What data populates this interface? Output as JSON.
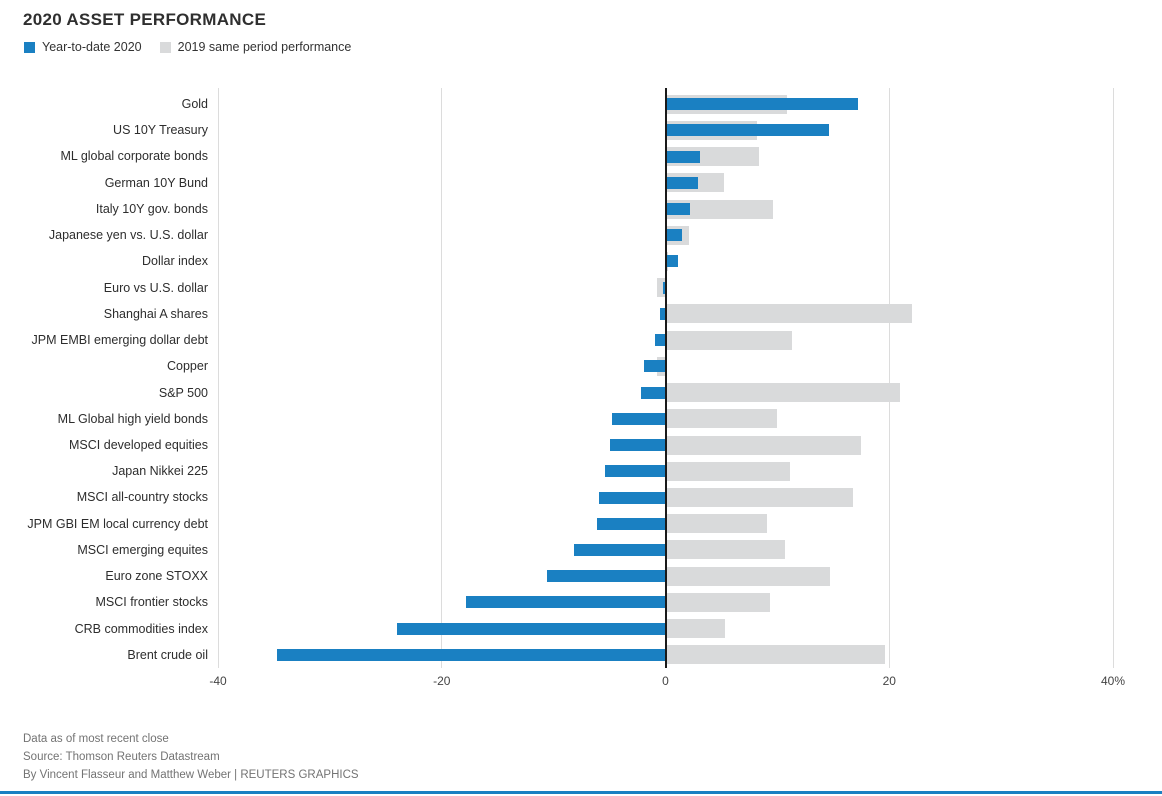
{
  "header": {
    "title": "2020 ASSET PERFORMANCE"
  },
  "legend": [
    {
      "label": "Year-to-date 2020",
      "color": "#1a80c2"
    },
    {
      "label": "2019 same period performance",
      "color": "#d9dadb"
    }
  ],
  "chart_data": {
    "type": "bar",
    "orientation": "horizontal",
    "title": "2020 ASSET PERFORMANCE",
    "categories": [
      "Gold",
      "US 10Y Treasury",
      "ML global corporate bonds",
      "German 10Y Bund",
      "Italy 10Y gov. bonds",
      "Japanese yen vs. U.S. dollar",
      "Dollar index",
      "Euro vs U.S. dollar",
      "Shanghai A shares",
      "JPM EMBI emerging dollar debt",
      "Copper",
      "S&P 500",
      "ML Global high yield bonds",
      "MSCI developed equities",
      "Japan Nikkei 225",
      "MSCI all-country stocks",
      "JPM GBI EM local currency debt",
      "MSCI emerging equites",
      "Euro zone STOXX",
      "MSCI frontier stocks",
      "CRB commodities index",
      "Brent crude oil"
    ],
    "series": [
      {
        "name": "Year-to-date 2020",
        "color": "#1a80c2",
        "values": [
          17.2,
          14.6,
          3.1,
          2.9,
          2.2,
          1.5,
          1.1,
          -0.2,
          -0.5,
          -0.9,
          -1.9,
          -2.2,
          -4.8,
          -5.0,
          -5.4,
          -5.9,
          -6.1,
          -8.2,
          -10.6,
          -17.8,
          -24.0,
          -34.7
        ]
      },
      {
        "name": "2019 same period performance",
        "color": "#d9dadb",
        "values": [
          10.9,
          8.2,
          8.4,
          5.2,
          9.6,
          2.1,
          0.2,
          -0.8,
          22.0,
          11.3,
          -0.8,
          21.0,
          10.0,
          17.5,
          11.1,
          16.8,
          9.1,
          10.7,
          14.7,
          9.3,
          5.3,
          19.6
        ]
      }
    ],
    "xlabel": "",
    "ylabel": "",
    "xlim": [
      -40,
      40
    ],
    "xticks": [
      -40,
      -20,
      0,
      20,
      40
    ],
    "xtick_labels": [
      "-40",
      "-20",
      "0",
      "20",
      "40%"
    ],
    "grid": "vertical",
    "zero_line": true,
    "legend_position": "top-left",
    "unit": "%"
  },
  "footer": {
    "line1": "Data as of most recent close",
    "line2": "Source: Thomson Reuters Datastream",
    "line3": "By Vincent Flasseur and Matthew Weber | REUTERS GRAPHICS"
  }
}
